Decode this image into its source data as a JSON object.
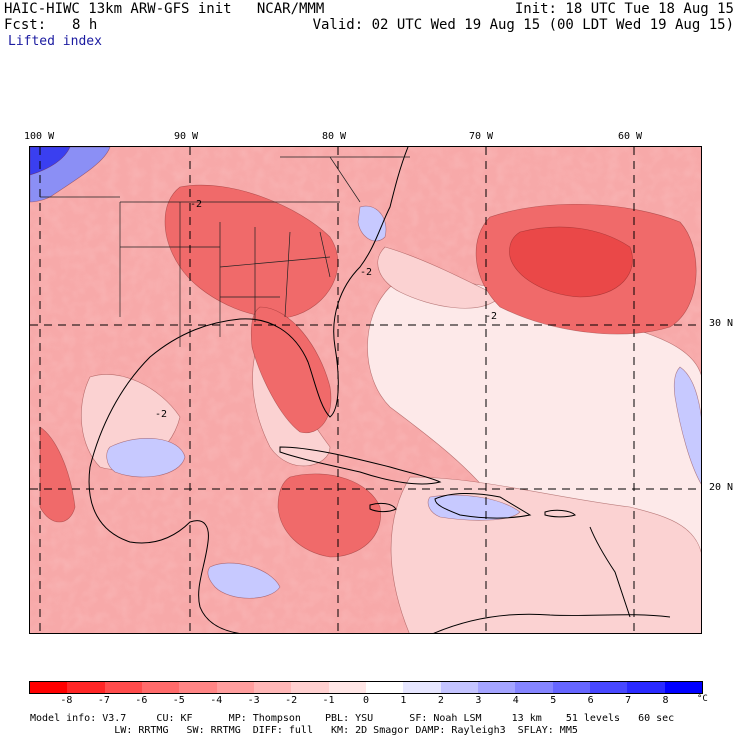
{
  "header": {
    "title_left": "HAIC-HIWC 13km ARW-GFS init   NCAR/MMM",
    "fcst_label": "Fcst:",
    "fcst_value": "8 h",
    "field_name": "Lifted index",
    "init": "Init: 18 UTC Tue 18 Aug 15",
    "valid": "Valid: 02 UTC Wed 19 Aug 15 (00 LDT Wed 19 Aug 15)"
  },
  "map": {
    "lon_labels": [
      "100 W",
      "90 W",
      "80 W",
      "70 W",
      "60 W"
    ],
    "lat_labels": [
      "30 N",
      "20 N"
    ],
    "contour_label": "-2",
    "colors": {
      "base": "#f7a9a9",
      "light": "#fbd2d2",
      "pale": "#fde9e9",
      "strong": "#f06a6a",
      "deep": "#ea4848",
      "blue_light": "#c7c9ff",
      "blue": "#8b8ff5",
      "blue_deep": "#3a3ff0",
      "white": "#fdf5f5"
    }
  },
  "colorbar": {
    "colors": [
      "#ff0000",
      "#ff2626",
      "#ff4c4c",
      "#ff6b6b",
      "#ff8585",
      "#ff9e9e",
      "#ffb7b7",
      "#ffd0d0",
      "#ffe6e6",
      "#ffffff",
      "#e6e6ff",
      "#c4c4ff",
      "#a4a4ff",
      "#8585ff",
      "#6666ff",
      "#4848ff",
      "#2a2aff",
      "#0000ff"
    ],
    "labels": [
      "-8",
      "-7",
      "-6",
      "-5",
      "-4",
      "-3",
      "-2",
      "-1",
      "0",
      "1",
      "2",
      "3",
      "4",
      "5",
      "6",
      "7",
      "8"
    ],
    "unit": "°C"
  },
  "footer": {
    "line1": "Model info: V3.7     CU: KF      MP: Thompson    PBL: YSU      SF: Noah LSM     13 km    51 levels   60 sec",
    "line2": "              LW: RRTMG   SW: RRTMG  DIFF: full   KM: 2D Smagor DAMP: Rayleigh3  SFLAY: MM5"
  }
}
